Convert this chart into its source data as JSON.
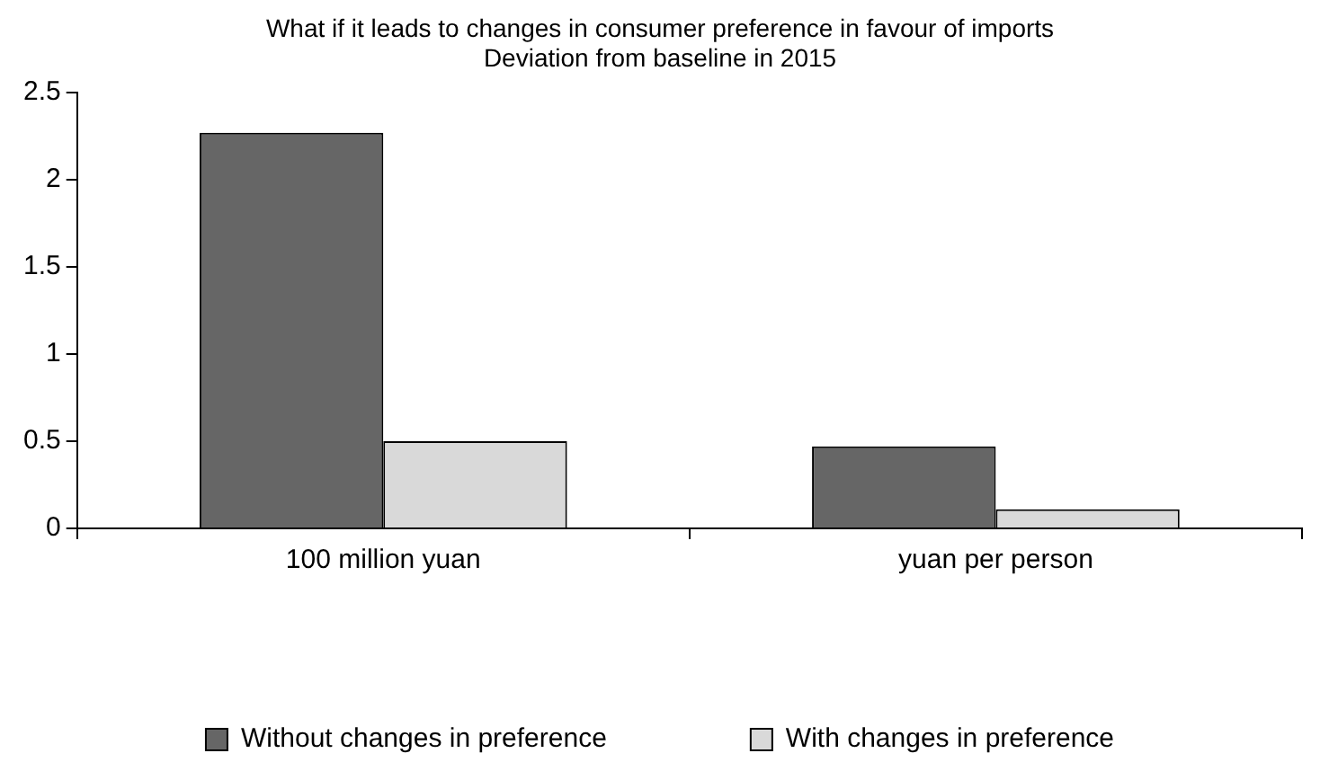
{
  "chart_data": {
    "type": "bar",
    "title": "What if it leads to changes in consumer preference in favour of imports",
    "subtitle": "Deviation from baseline in 2015",
    "categories": [
      "100 million yuan",
      "yuan per person"
    ],
    "series": [
      {
        "name": "Without changes in preference",
        "color": "#666666",
        "values": [
          2.27,
          0.47
        ]
      },
      {
        "name": "With changes in preference",
        "color": "#d9d9d9",
        "values": [
          0.5,
          0.11
        ]
      }
    ],
    "ylim": [
      0,
      2.5
    ],
    "yticks": [
      0,
      0.5,
      1,
      1.5,
      2,
      2.5
    ],
    "grid": false,
    "legend": "bottom"
  }
}
